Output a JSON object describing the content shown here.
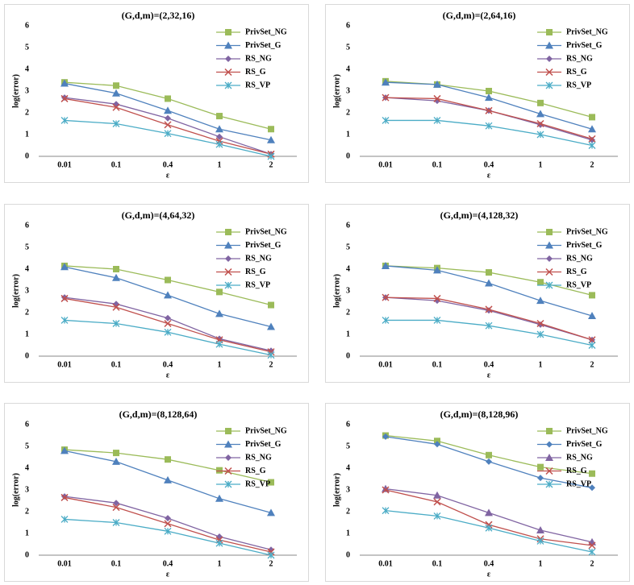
{
  "chart_data": [
    {
      "type": "line",
      "title": "(G,d,m)=(2,32,16)",
      "x_label": "ε",
      "y_label": "log(error)",
      "categories": [
        "0.01",
        "0.1",
        "0.4",
        "1",
        "2"
      ],
      "ylim": [
        0,
        6
      ],
      "yticks": [
        0,
        1,
        2,
        3,
        4,
        5,
        6
      ],
      "legend": "upper right",
      "series": [
        {
          "name": "PrivSet_NG",
          "color": "#9bbb59",
          "marker": "square",
          "values": [
            3.4,
            3.25,
            2.65,
            1.85,
            1.25
          ]
        },
        {
          "name": "PrivSet_G",
          "color": "#4f81bd",
          "marker": "triangle",
          "values": [
            3.35,
            2.9,
            2.1,
            1.25,
            0.75
          ]
        },
        {
          "name": "RS_NG",
          "color": "#8064a2",
          "marker": "diamond",
          "values": [
            2.7,
            2.4,
            1.75,
            0.9,
            0.1
          ]
        },
        {
          "name": "RS_G",
          "color": "#c0504d",
          "marker": "x",
          "values": [
            2.65,
            2.25,
            1.45,
            0.7,
            0.1
          ]
        },
        {
          "name": "RS_VP",
          "color": "#4bacc6",
          "marker": "star",
          "values": [
            1.65,
            1.5,
            1.05,
            0.55,
            0.0
          ]
        }
      ]
    },
    {
      "type": "line",
      "title": "(G,d,m)=(2,64,16)",
      "x_label": "ε",
      "y_label": "log(error)",
      "categories": [
        "0.01",
        "0.1",
        "0.4",
        "1",
        "2"
      ],
      "ylim": [
        0,
        6
      ],
      "yticks": [
        0,
        1,
        2,
        3,
        4,
        5,
        6
      ],
      "legend": "upper right",
      "series": [
        {
          "name": "PrivSet_NG",
          "color": "#9bbb59",
          "marker": "square",
          "values": [
            3.45,
            3.3,
            3.0,
            2.45,
            1.8
          ]
        },
        {
          "name": "PrivSet_G",
          "color": "#4f81bd",
          "marker": "triangle",
          "values": [
            3.4,
            3.3,
            2.7,
            1.95,
            1.25
          ]
        },
        {
          "name": "RS_NG",
          "color": "#8064a2",
          "marker": "diamond",
          "values": [
            2.7,
            2.55,
            2.1,
            1.45,
            0.75
          ]
        },
        {
          "name": "RS_G",
          "color": "#c0504d",
          "marker": "x",
          "values": [
            2.7,
            2.65,
            2.1,
            1.5,
            0.8
          ]
        },
        {
          "name": "RS_VP",
          "color": "#4bacc6",
          "marker": "star",
          "values": [
            1.65,
            1.65,
            1.4,
            1.0,
            0.5
          ]
        }
      ]
    },
    {
      "type": "line",
      "title": "(G,d,m)=(4,64,32)",
      "x_label": "ε",
      "y_label": "log(error)",
      "categories": [
        "0.01",
        "0.1",
        "0.4",
        "1",
        "2"
      ],
      "ylim": [
        0,
        6
      ],
      "yticks": [
        0,
        1,
        2,
        3,
        4,
        5,
        6
      ],
      "legend": "upper right",
      "series": [
        {
          "name": "PrivSet_NG",
          "color": "#9bbb59",
          "marker": "square",
          "values": [
            4.15,
            4.0,
            3.5,
            2.95,
            2.35
          ]
        },
        {
          "name": "PrivSet_G",
          "color": "#4f81bd",
          "marker": "triangle",
          "values": [
            4.1,
            3.6,
            2.8,
            1.95,
            1.35
          ]
        },
        {
          "name": "RS_NG",
          "color": "#8064a2",
          "marker": "diamond",
          "values": [
            2.7,
            2.4,
            1.75,
            0.8,
            0.25
          ]
        },
        {
          "name": "RS_G",
          "color": "#c0504d",
          "marker": "x",
          "values": [
            2.65,
            2.25,
            1.5,
            0.75,
            0.2
          ]
        },
        {
          "name": "RS_VP",
          "color": "#4bacc6",
          "marker": "star",
          "values": [
            1.65,
            1.5,
            1.1,
            0.55,
            0.05
          ]
        }
      ]
    },
    {
      "type": "line",
      "title": "(G,d,m)=(4,128,32)",
      "x_label": "ε",
      "y_label": "log(error)",
      "categories": [
        "0.01",
        "0.1",
        "0.4",
        "1",
        "2"
      ],
      "ylim": [
        0,
        6
      ],
      "yticks": [
        0,
        1,
        2,
        3,
        4,
        5,
        6
      ],
      "legend": "upper right",
      "series": [
        {
          "name": "PrivSet_NG",
          "color": "#9bbb59",
          "marker": "square",
          "values": [
            4.15,
            4.05,
            3.85,
            3.4,
            2.8
          ]
        },
        {
          "name": "PrivSet_G",
          "color": "#4f81bd",
          "marker": "triangle",
          "values": [
            4.15,
            3.95,
            3.35,
            2.55,
            1.85
          ]
        },
        {
          "name": "RS_NG",
          "color": "#8064a2",
          "marker": "diamond",
          "values": [
            2.7,
            2.55,
            2.1,
            1.45,
            0.75
          ]
        },
        {
          "name": "RS_G",
          "color": "#c0504d",
          "marker": "x",
          "values": [
            2.7,
            2.65,
            2.15,
            1.5,
            0.75
          ]
        },
        {
          "name": "RS_VP",
          "color": "#4bacc6",
          "marker": "star",
          "values": [
            1.65,
            1.65,
            1.4,
            1.0,
            0.5
          ]
        }
      ]
    },
    {
      "type": "line",
      "title": "(G,d,m)=(8,128,64)",
      "x_label": "ε",
      "y_label": "log(error)",
      "categories": [
        "0.01",
        "0.1",
        "0.4",
        "1",
        "2"
      ],
      "ylim": [
        0,
        6
      ],
      "yticks": [
        0,
        1,
        2,
        3,
        4,
        5,
        6
      ],
      "legend": "upper right",
      "series": [
        {
          "name": "PrivSet_NG",
          "color": "#9bbb59",
          "marker": "square",
          "values": [
            4.85,
            4.7,
            4.4,
            3.9,
            3.35
          ]
        },
        {
          "name": "PrivSet_G",
          "color": "#4f81bd",
          "marker": "triangle",
          "values": [
            4.8,
            4.3,
            3.45,
            2.6,
            1.95
          ]
        },
        {
          "name": "RS_NG",
          "color": "#8064a2",
          "marker": "diamond",
          "values": [
            2.7,
            2.4,
            1.7,
            0.85,
            0.25
          ]
        },
        {
          "name": "RS_G",
          "color": "#c0504d",
          "marker": "x",
          "values": [
            2.65,
            2.2,
            1.45,
            0.7,
            0.15
          ]
        },
        {
          "name": "RS_VP",
          "color": "#4bacc6",
          "marker": "star",
          "values": [
            1.65,
            1.5,
            1.1,
            0.55,
            0.0
          ]
        }
      ]
    },
    {
      "type": "line",
      "title": "(G,d,m)=(8,128,96)",
      "x_label": "ε",
      "y_label": "log(error)",
      "categories": [
        "0.01",
        "0.1",
        "0.4",
        "1",
        "2"
      ],
      "ylim": [
        0,
        6
      ],
      "yticks": [
        0,
        1,
        2,
        3,
        4,
        5,
        6
      ],
      "legend": "upper right",
      "series": [
        {
          "name": "PrivSet_NG",
          "color": "#9bbb59",
          "marker": "square",
          "values": [
            5.5,
            5.25,
            4.6,
            4.05,
            3.75
          ]
        },
        {
          "name": "PrivSet_G",
          "color": "#4f81bd",
          "marker": "diamond",
          "values": [
            5.45,
            5.1,
            4.3,
            3.55,
            3.1
          ]
        },
        {
          "name": "RS_NG",
          "color": "#8064a2",
          "marker": "triangle",
          "values": [
            3.05,
            2.75,
            1.95,
            1.15,
            0.6
          ]
        },
        {
          "name": "RS_G",
          "color": "#c0504d",
          "marker": "x",
          "values": [
            3.0,
            2.45,
            1.4,
            0.75,
            0.45
          ]
        },
        {
          "name": "RS_VP",
          "color": "#4bacc6",
          "marker": "star",
          "values": [
            2.05,
            1.8,
            1.25,
            0.65,
            0.15
          ]
        }
      ]
    }
  ]
}
